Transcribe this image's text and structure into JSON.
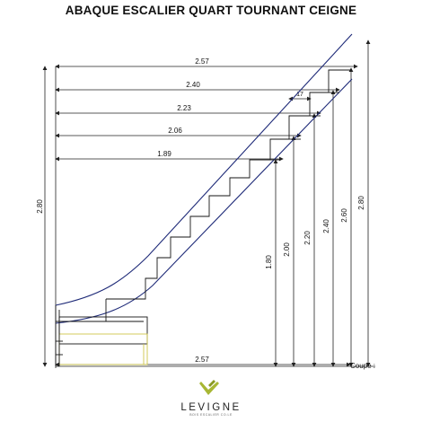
{
  "title": "ABAQUE ESCALIER QUART TOURNANT CEIGNE",
  "dimensions": {
    "top_width": "2.57",
    "flight_lengths": [
      "2.40",
      "2.23",
      "2.06",
      "1.89"
    ],
    "step_offset": "17",
    "total_height_left": "2.80",
    "total_height_right": "2.80",
    "heights": [
      "1.80",
      "2.00",
      "2.20",
      "2.40",
      "2.60"
    ],
    "bottom_width": "2.57",
    "section_label": "Coupe :"
  },
  "brand": {
    "name": "LEVIGNE",
    "tagline": "BOIS ESCALIER CO.LE"
  },
  "colors": {
    "stringer": "#1e2a78",
    "landing": "#cfc64a",
    "logo_green": "#a8b734"
  }
}
